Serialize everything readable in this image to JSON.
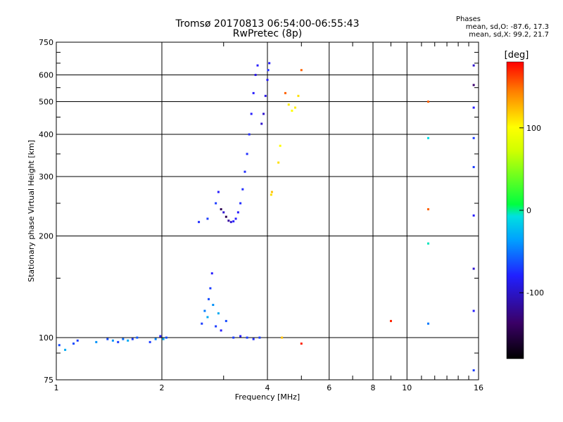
{
  "header": {
    "title": "Tromsø 20170813 06:54:00-06:55:43",
    "subtitle": "RwPretec (8p)",
    "phases_title": "Phases",
    "phases_o": "mean, sd,O:  -87.6, 17.3",
    "phases_x": "mean, sd,X:   99.2, 21.7"
  },
  "colorbar": {
    "unit": "[deg]",
    "ticks": [
      {
        "value": 100,
        "label": "100"
      },
      {
        "value": 0,
        "label": "0"
      },
      {
        "value": -100,
        "label": "-100"
      }
    ],
    "range": [
      -180,
      180
    ]
  },
  "chart_data": {
    "type": "scatter",
    "title": "Tromsø 20170813 06:54:00-06:55:43",
    "subtitle": "RwPretec (8p)",
    "xlabel": "Frequency [MHz]",
    "ylabel": "Stationary phase Virtual Height [km]",
    "xscale": "log",
    "yscale": "log",
    "xlim": [
      1,
      16
    ],
    "ylim": [
      75,
      750
    ],
    "x_ticks": [
      1,
      2,
      4,
      6,
      8,
      10,
      16
    ],
    "x_tick_labels": [
      "1",
      "2",
      "4",
      "6",
      "8",
      "10",
      "16"
    ],
    "y_ticks": [
      75,
      100,
      200,
      300,
      400,
      500,
      600,
      750
    ],
    "y_tick_labels": [
      "75",
      "100",
      "200",
      "300",
      "400",
      "500",
      "600",
      "750"
    ],
    "x_grid": [
      2,
      4,
      6,
      8,
      10
    ],
    "y_grid": [
      100,
      200,
      300,
      400,
      500,
      600
    ],
    "minor_x_ticks": [
      3,
      5,
      7,
      9,
      11,
      12,
      13,
      14,
      15
    ],
    "minor_y_ticks": [
      90,
      150,
      250,
      350,
      450,
      550,
      650,
      700
    ],
    "color_scale": "phase [deg], -180 black -> -120 violet -> -100 blue -> -50 cyan -> 0 green -> 100 yellow -> 180 red",
    "series": [
      {
        "points": [
          [
            1.02,
            95,
            -95
          ],
          [
            1.06,
            92,
            -60
          ],
          [
            1.12,
            96,
            -95
          ],
          [
            1.15,
            98,
            -100
          ],
          [
            1.3,
            97,
            -70
          ],
          [
            1.4,
            99,
            -95
          ],
          [
            1.45,
            98,
            -70
          ],
          [
            1.5,
            97,
            -100
          ],
          [
            1.55,
            99,
            -85
          ],
          [
            1.6,
            98,
            -60
          ],
          [
            1.65,
            99,
            -100
          ],
          [
            1.7,
            100,
            -90
          ],
          [
            1.85,
            97,
            -100
          ],
          [
            1.92,
            99,
            -75
          ],
          [
            1.98,
            101,
            -110
          ],
          [
            2.02,
            99,
            -60
          ],
          [
            2.06,
            100,
            -95
          ]
        ]
      },
      {
        "points": [
          [
            2.6,
            110,
            -100
          ],
          [
            2.65,
            120,
            -80
          ],
          [
            2.7,
            115,
            -60
          ],
          [
            2.72,
            130,
            -95
          ],
          [
            2.75,
            140,
            -100
          ],
          [
            2.78,
            155,
            -110
          ],
          [
            2.8,
            125,
            -70
          ],
          [
            2.85,
            108,
            -100
          ],
          [
            2.9,
            118,
            -60
          ],
          [
            2.95,
            105,
            -110
          ],
          [
            3.05,
            112,
            -95
          ],
          [
            3.2,
            100,
            -100
          ],
          [
            3.35,
            101,
            -110
          ],
          [
            3.5,
            100,
            -100
          ],
          [
            3.65,
            99,
            -105
          ],
          [
            3.8,
            100,
            -100
          ]
        ]
      },
      {
        "points": [
          [
            2.55,
            220,
            -105
          ],
          [
            2.7,
            225,
            -100
          ],
          [
            2.85,
            250,
            -100
          ],
          [
            2.9,
            270,
            -110
          ],
          [
            2.95,
            240,
            -150
          ],
          [
            3.0,
            235,
            -120
          ],
          [
            3.05,
            228,
            -150
          ],
          [
            3.1,
            222,
            -130
          ],
          [
            3.15,
            220,
            -120
          ],
          [
            3.2,
            221,
            -110
          ],
          [
            3.25,
            225,
            -110
          ],
          [
            3.3,
            235,
            -110
          ],
          [
            3.35,
            250,
            -105
          ],
          [
            3.4,
            275,
            -105
          ],
          [
            3.45,
            310,
            -105
          ],
          [
            3.5,
            350,
            -105
          ],
          [
            3.55,
            400,
            -105
          ],
          [
            3.6,
            460,
            -110
          ],
          [
            3.65,
            530,
            -110
          ],
          [
            3.7,
            600,
            -115
          ],
          [
            3.75,
            640,
            -110
          ]
        ]
      },
      {
        "points": [
          [
            3.85,
            430,
            -120
          ],
          [
            3.9,
            460,
            -120
          ],
          [
            3.95,
            520,
            -115
          ],
          [
            4.0,
            580,
            -110
          ],
          [
            4.02,
            620,
            -105
          ],
          [
            4.05,
            650,
            -110
          ]
        ]
      },
      {
        "points": [
          [
            4.1,
            265,
            110
          ],
          [
            4.12,
            270,
            120
          ],
          [
            4.3,
            330,
            110
          ],
          [
            4.35,
            370,
            100
          ],
          [
            4.5,
            530,
            150
          ],
          [
            4.6,
            490,
            105
          ],
          [
            4.7,
            470,
            100
          ],
          [
            4.8,
            480,
            105
          ],
          [
            4.9,
            520,
            110
          ],
          [
            5.0,
            620,
            150
          ]
        ]
      },
      {
        "points": [
          [
            4.4,
            100,
            120
          ],
          [
            5.0,
            96,
            170
          ],
          [
            9.0,
            112,
            170
          ],
          [
            11.5,
            500,
            150
          ],
          [
            11.5,
            390,
            -40
          ],
          [
            11.5,
            240,
            150
          ],
          [
            11.5,
            190,
            -30
          ],
          [
            11.5,
            110,
            -80
          ],
          [
            15.5,
            640,
            -120
          ],
          [
            15.5,
            560,
            -140
          ],
          [
            15.5,
            480,
            -110
          ],
          [
            15.5,
            390,
            -100
          ],
          [
            15.5,
            320,
            -100
          ],
          [
            15.5,
            230,
            -110
          ],
          [
            15.5,
            160,
            -120
          ],
          [
            15.5,
            120,
            -110
          ],
          [
            15.5,
            80,
            -100
          ]
        ]
      }
    ]
  }
}
